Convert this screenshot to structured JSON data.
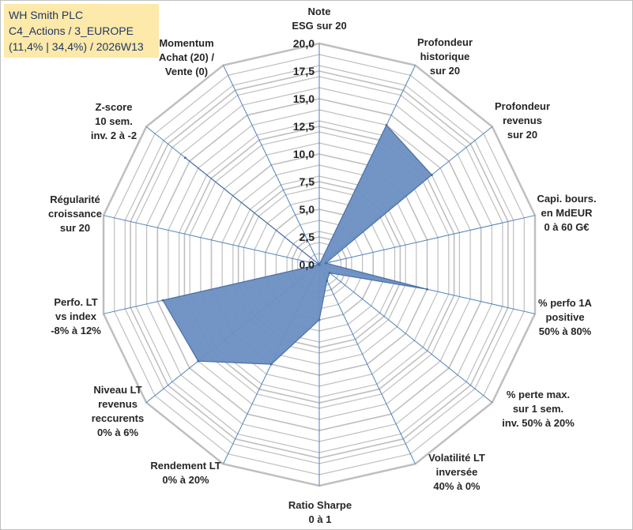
{
  "header": {
    "line1": "WH Smith PLC",
    "line2": "C4_Actions / 3_EUROPE",
    "line3": "(11,4% | 34,4%) / 2026W13"
  },
  "colors": {
    "fill": "#6b8fc3",
    "stroke": "#4a6fa5",
    "grid": "#bfbfbf",
    "spoke": "#4f81bd",
    "title_bg": "#fde9a9"
  },
  "chart_data": {
    "type": "radar",
    "title": "",
    "rmin": 0,
    "rmax": 20,
    "ticks": [
      "0,0",
      "2,5",
      "5,0",
      "7,5",
      "10,0",
      "12,5",
      "15,0",
      "17,5",
      "20,0"
    ],
    "axes": [
      {
        "label": [
          "Note",
          "ESG sur 20"
        ],
        "value": 0.0
      },
      {
        "label": [
          "Profondeur",
          "historique",
          "sur 20"
        ],
        "value": 14.0
      },
      {
        "label": [
          "Profondeur",
          "revenus",
          "sur 20"
        ],
        "value": 13.0
      },
      {
        "label": [
          "Capi. bours.",
          "en MdEUR",
          "0 à 60 G€"
        ],
        "value": 0.6
      },
      {
        "label": [
          "% perfo 1A",
          "positive",
          "50% à 80%"
        ],
        "value": 10.0
      },
      {
        "label": [
          "% perte max.",
          "sur 1 sem.",
          "inv. 50% à 20%"
        ],
        "value": 1.2
      },
      {
        "label": [
          "Volatilité LT",
          "inversée",
          "40% à 0%"
        ],
        "value": 1.6
      },
      {
        "label": [
          "Ratio Sharpe",
          "0 à 1"
        ],
        "value": 5.0
      },
      {
        "label": [
          "Rendement LT",
          "0% à 20%"
        ],
        "value": 10.0
      },
      {
        "label": [
          "Niveau LT",
          "revenus",
          "reccurents",
          "0% à 6%"
        ],
        "value": 14.0
      },
      {
        "label": [
          "Perfo. LT",
          "vs index",
          "-8% à 12%"
        ],
        "value": 14.5
      },
      {
        "label": [
          "Régularité",
          "croissance",
          "sur 20"
        ],
        "value": 0.0
      },
      {
        "label": [
          "Z-score",
          "10 sem.",
          "inv. 2 à -2"
        ],
        "value": 15.5
      },
      {
        "label": [
          "Momentum",
          "Achat (20) /",
          "Vente (0)"
        ],
        "value": 0.0
      }
    ]
  }
}
